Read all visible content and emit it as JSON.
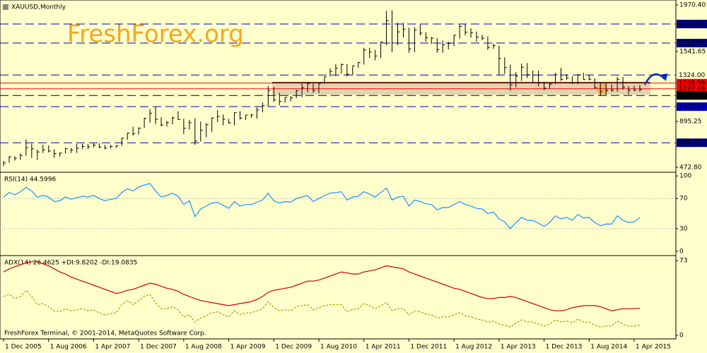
{
  "chart_data": [
    {
      "type": "ohlc",
      "title": "XAUUSD,Monthly",
      "watermark": "FreshForex.org",
      "color": "#000000",
      "ylim": [
        427,
        2016
      ],
      "yticks": [
        {
          "value": 1970.4,
          "label": "1970.40"
        },
        {
          "value": 1541.65,
          "label": "1541.65"
        },
        {
          "value": 895.25,
          "label": "895.25"
        },
        {
          "value": 472.8,
          "label": "472.80"
        }
      ],
      "levels": [
        {
          "value": 1794.45,
          "label": "1794.45",
          "style": "dashed",
          "color": "#0000c0",
          "label_bg": "#000080",
          "label_color": "#ffffff"
        },
        {
          "value": 1618.46,
          "label": "1618.46",
          "style": "dashed",
          "color": "#0000c0",
          "label_bg": "#000080",
          "label_color": "#ffffff"
        },
        {
          "value": 1324,
          "label": "1324.00",
          "style": "dashed",
          "color": "#0000c0",
          "label_bg": "#ffffcc",
          "label_color": "#000000"
        },
        {
          "value": 1248.99,
          "label": "1248.99",
          "style": "solid",
          "color": "#ff0000",
          "label_bg": "#ff0000",
          "label_color": "#ffffff"
        },
        {
          "value": 1197.46,
          "label": "1197.46",
          "style": "solid",
          "color": "#ff0000",
          "label_bg": "#ff0000",
          "label_color": "#ffffff"
        },
        {
          "value": 1135.46,
          "label": "1135.46",
          "style": "dashed",
          "color": "#000000",
          "label_bg": "#000000",
          "label_color": "#ffffff"
        },
        {
          "value": 1032.24,
          "label": "1032.24",
          "style": "dashed",
          "color": "#0000c0",
          "label_bg": "#0000c0",
          "label_color": "#ffffff"
        },
        {
          "value": 699.27,
          "label": "699.27",
          "style": "dashed",
          "color": "#0000c0",
          "label_bg": "#000080",
          "label_color": "#ffffff"
        }
      ],
      "high": [
        530,
        575,
        575,
        600,
        730,
        690,
        635,
        680,
        675,
        640,
        610,
        650,
        650,
        690,
        690,
        690,
        695,
        695,
        680,
        680,
        675,
        745,
        790,
        845,
        840,
        930,
        1010,
        1030,
        935,
        900,
        940,
        990,
        920,
        910,
        925,
        895,
        880,
        935,
        1000,
        960,
        920,
        980,
        990,
        955,
        965,
        1025,
        1070,
        1225,
        1215,
        1160,
        1120,
        1130,
        1185,
        1245,
        1260,
        1245,
        1250,
        1310,
        1385,
        1425,
        1430,
        1425,
        1410,
        1445,
        1575,
        1575,
        1555,
        1630,
        1915,
        1920,
        1805,
        1805,
        1760,
        1765,
        1790,
        1720,
        1675,
        1665,
        1640,
        1630,
        1695,
        1790,
        1795,
        1755,
        1725,
        1695,
        1680,
        1615,
        1595,
        1487,
        1420,
        1350,
        1430,
        1435,
        1365,
        1365,
        1262,
        1250,
        1345,
        1390,
        1332,
        1310,
        1332,
        1345,
        1325,
        1295,
        1256,
        1255,
        1238,
        1307,
        1308,
        1220,
        1224,
        1232
      ],
      "low": [
        485,
        515,
        535,
        540,
        580,
        560,
        540,
        605,
        610,
        560,
        572,
        600,
        605,
        605,
        640,
        640,
        655,
        650,
        640,
        645,
        650,
        670,
        725,
        765,
        775,
        835,
        885,
        870,
        850,
        850,
        870,
        910,
        780,
        820,
        680,
        710,
        750,
        800,
        890,
        860,
        875,
        860,
        915,
        910,
        930,
        920,
        980,
        1040,
        1075,
        1045,
        1070,
        1080,
        1110,
        1120,
        1165,
        1160,
        1155,
        1245,
        1310,
        1315,
        1335,
        1310,
        1320,
        1390,
        1420,
        1480,
        1460,
        1480,
        1600,
        1535,
        1600,
        1670,
        1530,
        1535,
        1690,
        1630,
        1610,
        1530,
        1530,
        1560,
        1590,
        1660,
        1690,
        1670,
        1630,
        1645,
        1555,
        1565,
        1320,
        1335,
        1180,
        1210,
        1270,
        1295,
        1250,
        1220,
        1185,
        1200,
        1240,
        1270,
        1280,
        1240,
        1240,
        1280,
        1275,
        1200,
        1130,
        1140,
        1170,
        1170,
        1190,
        1145,
        1175,
        1170
      ],
      "close": [
        513,
        569,
        556,
        582,
        654,
        643,
        614,
        633,
        623,
        599,
        603,
        646,
        632,
        650,
        665,
        662,
        677,
        659,
        650,
        665,
        672,
        742,
        789,
        783,
        834,
        923,
        972,
        916,
        864,
        885,
        928,
        913,
        833,
        884,
        716,
        815,
        865,
        927,
        942,
        916,
        883,
        978,
        926,
        954,
        955,
        1001,
        1040,
        1180,
        1096,
        1081,
        1118,
        1113,
        1179,
        1207,
        1244,
        1181,
        1247,
        1307,
        1357,
        1386,
        1421,
        1332,
        1409,
        1439,
        1556,
        1536,
        1500,
        1628,
        1825,
        1620,
        1722,
        1746,
        1564,
        1737,
        1711,
        1668,
        1664,
        1559,
        1604,
        1614,
        1691,
        1772,
        1719,
        1713,
        1675,
        1663,
        1578,
        1595,
        1476,
        1393,
        1234,
        1314,
        1396,
        1327,
        1323,
        1253,
        1202,
        1240,
        1326,
        1284,
        1296,
        1250,
        1327,
        1282,
        1286,
        1208,
        1171,
        1182,
        1184,
        1284,
        1213,
        1183,
        1184,
        1190
      ]
    },
    {
      "type": "line",
      "title": "RSI(14) 44.5996",
      "color": "#1e90ff",
      "ylim": [
        -5.8,
        104.9
      ],
      "yticks": [
        100,
        70,
        30,
        0
      ],
      "values": [
        72,
        78,
        75,
        79,
        85,
        80,
        72,
        74,
        72,
        66,
        67,
        72,
        69,
        71,
        73,
        72,
        74,
        70,
        67,
        69,
        70,
        78,
        83,
        80,
        85,
        88,
        90,
        80,
        72,
        74,
        77,
        73,
        62,
        67,
        46,
        56,
        60,
        64,
        65,
        61,
        57,
        66,
        60,
        62,
        62,
        65,
        68,
        77,
        67,
        64,
        66,
        65,
        70,
        72,
        74,
        66,
        70,
        74,
        77,
        78,
        79,
        68,
        72,
        73,
        79,
        76,
        72,
        78,
        84,
        68,
        72,
        73,
        60,
        68,
        66,
        63,
        62,
        55,
        58,
        58,
        62,
        66,
        62,
        60,
        57,
        56,
        50,
        52,
        43,
        39,
        30,
        38,
        45,
        41,
        41,
        37,
        33,
        38,
        47,
        43,
        45,
        41,
        49,
        44,
        45,
        38,
        34,
        36,
        36,
        47,
        41,
        38,
        39,
        44.6
      ]
    },
    {
      "type": "line",
      "title": "ADX(14) 26.4625 +DI:9.8202 -DI:19.0835",
      "footer": "FreshForex Terminal, © 2001-2014, MetaQuotes Software Corp.",
      "ylim": [
        -3.5,
        78
      ],
      "yticks": [
        73,
        0
      ],
      "categories": [
        "1 Dec 2005",
        null,
        null,
        null,
        null,
        null,
        null,
        null,
        "1 Aug 2006",
        null,
        null,
        null,
        null,
        null,
        null,
        null,
        "1 Apr 2007",
        null,
        null,
        null,
        null,
        null,
        null,
        null,
        "1 Dec 2007",
        null,
        null,
        null,
        null,
        null,
        null,
        null,
        "1 Aug 2008",
        null,
        null,
        null,
        null,
        null,
        null,
        null,
        "1 Apr 2009",
        null,
        null,
        null,
        null,
        null,
        null,
        null,
        "1 Dec 2009",
        null,
        null,
        null,
        null,
        null,
        null,
        null,
        "1 Aug 2010",
        null,
        null,
        null,
        null,
        null,
        null,
        null,
        "1 Apr 2011",
        null,
        null,
        null,
        null,
        null,
        null,
        null,
        "1 Dec 2011",
        null,
        null,
        null,
        null,
        null,
        null,
        null,
        "1 Aug 2012",
        null,
        null,
        null,
        null,
        null,
        null,
        null,
        "1 Apr 2013",
        null,
        null,
        null,
        null,
        null,
        null,
        null,
        "1 Dec 2013",
        null,
        null,
        null,
        null,
        null,
        null,
        null,
        "1 Aug 2014",
        null,
        null,
        null,
        null,
        null,
        null,
        null,
        "1 Apr 2015",
        null
      ],
      "series": [
        {
          "color": "#d00000",
          "style": "solid",
          "values": [
            62,
            65,
            67,
            69,
            71,
            72,
            72,
            70,
            68,
            65,
            62,
            60,
            57,
            55,
            53,
            51,
            49,
            47,
            45,
            43,
            41,
            42,
            44,
            45,
            47,
            49,
            51,
            50,
            48,
            46,
            45,
            43,
            40,
            38,
            36,
            34,
            33,
            32,
            31,
            30,
            29,
            30,
            31,
            32,
            33,
            35,
            38,
            42,
            44,
            45,
            46,
            47,
            49,
            51,
            53,
            53,
            54,
            56,
            58,
            60,
            62,
            61,
            60,
            60,
            62,
            63,
            64,
            66,
            68,
            67,
            66,
            65,
            62,
            60,
            58,
            56,
            54,
            52,
            50,
            48,
            46,
            45,
            43,
            41,
            39,
            37,
            36,
            36,
            37,
            37,
            38,
            37,
            35,
            33,
            31,
            29,
            27,
            25,
            24,
            24,
            25,
            27,
            28,
            29,
            29,
            29,
            28,
            26,
            24,
            25,
            26,
            26,
            26,
            26.5
          ]
        },
        {
          "color": "#a8a000",
          "style": "dashed",
          "values": [
            38,
            40,
            36,
            38,
            44,
            38,
            30,
            31,
            28,
            24,
            23,
            26,
            24,
            25,
            26,
            24,
            25,
            22,
            20,
            21,
            22,
            30,
            34,
            30,
            34,
            38,
            40,
            32,
            26,
            26,
            28,
            25,
            18,
            20,
            13,
            17,
            19,
            22,
            23,
            20,
            18,
            24,
            20,
            22,
            22,
            24,
            26,
            33,
            27,
            24,
            25,
            24,
            28,
            29,
            30,
            25,
            27,
            29,
            30,
            30,
            30,
            23,
            25,
            26,
            31,
            29,
            26,
            29,
            32,
            24,
            26,
            26,
            20,
            24,
            23,
            21,
            20,
            17,
            18,
            18,
            20,
            22,
            19,
            18,
            16,
            15,
            13,
            14,
            11,
            10,
            8,
            12,
            15,
            13,
            13,
            11,
            9,
            11,
            15,
            13,
            14,
            12,
            16,
            13,
            13,
            10,
            8,
            9,
            9,
            14,
            11,
            9,
            9,
            9.8
          ]
        }
      ]
    }
  ]
}
